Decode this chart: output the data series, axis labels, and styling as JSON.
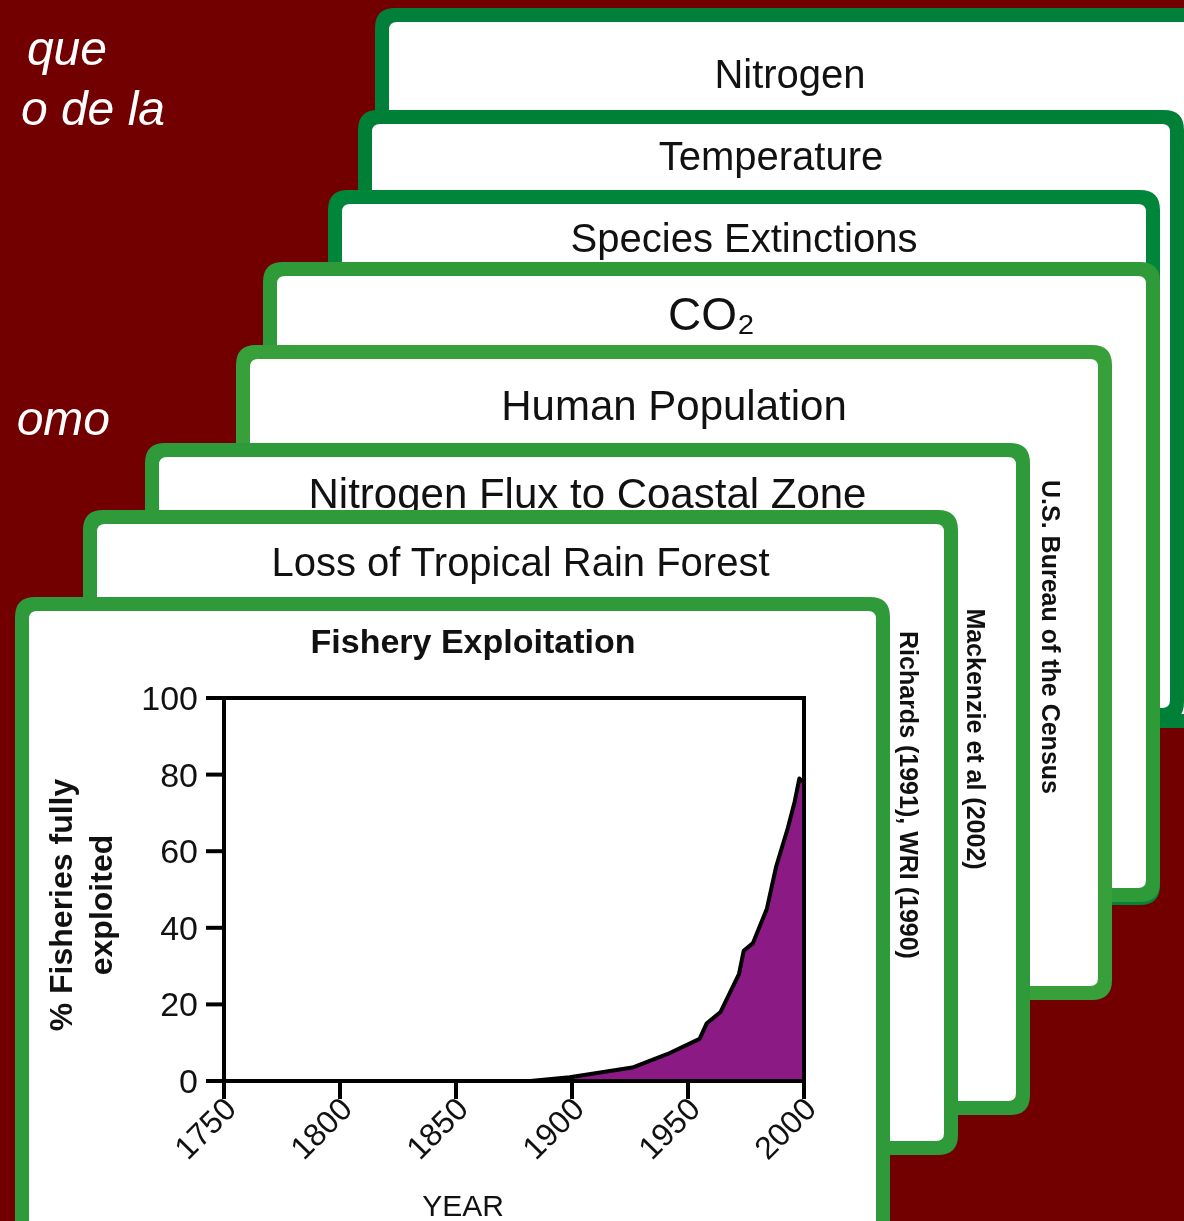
{
  "chart_data": {
    "type": "area",
    "title": "Fishery Exploitation",
    "xlabel": "YEAR",
    "ylabel": "% Fisheries fully exploited",
    "x": [
      1882,
      1899,
      1926,
      1941,
      1955,
      1958,
      1964,
      1972,
      1974,
      1978,
      1984,
      1988,
      1993,
      1996,
      1998,
      2000
    ],
    "series": [
      {
        "color": "#8b1a84",
        "values": [
          0,
          1,
          3.5,
          7,
          11,
          15,
          18,
          28,
          34,
          36,
          45,
          56,
          66,
          73,
          79,
          78
        ]
      }
    ],
    "xlim": [
      1750,
      2000
    ],
    "xticks": [
      1750,
      1800,
      1850,
      1900,
      1950,
      2000
    ],
    "ylim": [
      0,
      100
    ],
    "yticks": [
      0,
      20,
      40,
      60,
      80,
      100
    ],
    "grid": false,
    "annotations": [
      "que",
      "o de la",
      "omo",
      "Nitrogen",
      "Temperature",
      "Species Extinctions",
      "CO₂",
      "Human Population",
      "Nitrogen Flux to Coastal Zone",
      "Loss of Tropical Rain Forest",
      "U.S. Bureau of the Census",
      "Mackenzie et al  (2002)",
      "Richards (1991), WRI (1990)"
    ]
  }
}
